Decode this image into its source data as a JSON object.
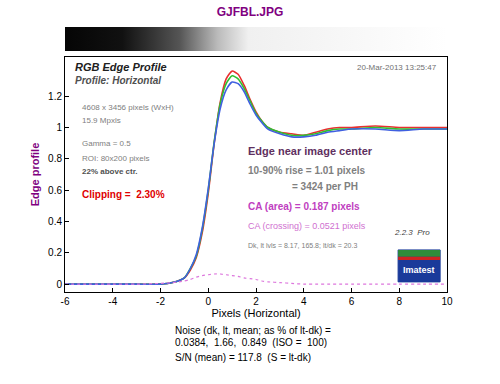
{
  "chart_data": {
    "type": "line",
    "title": "GJFBL.JPG",
    "x_label": "Pixels (Horizontal)",
    "y_label": "Edge profile",
    "x": [
      -6,
      -5,
      -4,
      -3,
      -2,
      -1.5,
      -1,
      -0.75,
      -0.5,
      -0.25,
      0,
      0.25,
      0.5,
      0.75,
      1,
      1.25,
      1.5,
      1.75,
      2,
      2.25,
      2.5,
      3,
      3.5,
      4,
      4.5,
      5,
      5.5,
      6,
      7,
      8,
      9,
      10
    ],
    "series": [
      {
        "color": "#e83030",
        "values": [
          0,
          0,
          0,
          0,
          0,
          0.01,
          0.04,
          0.09,
          0.17,
          0.33,
          0.58,
          0.9,
          1.16,
          1.31,
          1.36,
          1.34,
          1.27,
          1.18,
          1.1,
          1.04,
          1.0,
          0.97,
          0.96,
          0.95,
          0.97,
          0.99,
          1.0,
          1.0,
          1.01,
          1.0,
          1.0,
          1.0
        ]
      },
      {
        "color": "#30c030",
        "values": [
          0,
          0,
          0,
          0,
          0,
          0.01,
          0.04,
          0.1,
          0.18,
          0.35,
          0.6,
          0.91,
          1.15,
          1.28,
          1.33,
          1.31,
          1.25,
          1.17,
          1.09,
          1.04,
          1.0,
          0.97,
          0.95,
          0.95,
          0.96,
          0.98,
          0.99,
          0.99,
          1.0,
          0.99,
          0.99,
          0.99
        ]
      },
      {
        "color": "#4060e0",
        "values": [
          0,
          0,
          0,
          0,
          0,
          0.01,
          0.04,
          0.1,
          0.19,
          0.36,
          0.61,
          0.9,
          1.12,
          1.24,
          1.29,
          1.28,
          1.23,
          1.15,
          1.08,
          1.03,
          0.99,
          0.96,
          0.94,
          0.94,
          0.95,
          0.97,
          0.98,
          0.99,
          0.99,
          0.98,
          0.99,
          0.99
        ]
      },
      {
        "color": "#dd77dd",
        "line_style": "dotted",
        "values": [
          0,
          0,
          0,
          0,
          0.005,
          0.01,
          0.02,
          0.03,
          0.045,
          0.055,
          0.06,
          0.065,
          0.065,
          0.06,
          0.055,
          0.05,
          0.04,
          0.035,
          0.03,
          0.02,
          0.015,
          0.01,
          0.005,
          0,
          0,
          0,
          0,
          0,
          0,
          0,
          0,
          0
        ]
      }
    ],
    "xlim": [
      -6,
      10
    ],
    "xticks": [
      -6,
      -4,
      -2,
      0,
      2,
      4,
      6,
      8,
      10
    ],
    "ylim": [
      -0.05,
      1.45
    ],
    "yticks": [
      0,
      0.2,
      0.4,
      0.6,
      0.8,
      1,
      1.2
    ],
    "grid": false,
    "annotations": [
      {
        "text": "RGB Edge Profile",
        "color": "#202020"
      },
      {
        "text": "Profile: Horizontal",
        "color": "#505050"
      },
      {
        "text": "20-Mar-2013 13:25:47",
        "color": "#707070"
      },
      {
        "text": "4608 x 3456 pixels (WxH)",
        "color": "#808080"
      },
      {
        "text": "15.9 Mpxls",
        "color": "#808080"
      },
      {
        "text": "Gamma = 0.5",
        "color": "#808080"
      },
      {
        "text": "ROI: 80x200 pixels",
        "color": "#808080"
      },
      {
        "text": "22% above ctr.",
        "color": "#505050"
      },
      {
        "text": "Clipping =  2.30%",
        "color": "#e00000"
      },
      {
        "text": "Edge near image center",
        "color": "#603060"
      },
      {
        "text": "10-90% rise = 1.01 pixels",
        "color": "#808080"
      },
      {
        "text": "= 3424 per PH",
        "color": "#808080"
      },
      {
        "text": "CA (area) = 0.187 pixels",
        "color": "#c040c0"
      },
      {
        "text": "CA (crossing) = 0.0521 pixels",
        "color": "#d070d0"
      },
      {
        "text": "Dk, lt lvls = 8.17, 165.8; lt/dk = 20.3",
        "color": "#808080"
      },
      {
        "text": "2.2.3  Pro",
        "color": "#404040"
      },
      {
        "text": "Imatest",
        "color": "#ffffff"
      },
      {
        "text": "Noise (dk, lt, mean; as % of lt-dk) =",
        "color": "#000000"
      },
      {
        "text": "0.0384,  1.66,  0.849  (ISO =  100)",
        "color": "#000000"
      },
      {
        "text": "S/N (mean) = 117.8  (S = lt-dk)",
        "color": "#000000"
      }
    ]
  }
}
